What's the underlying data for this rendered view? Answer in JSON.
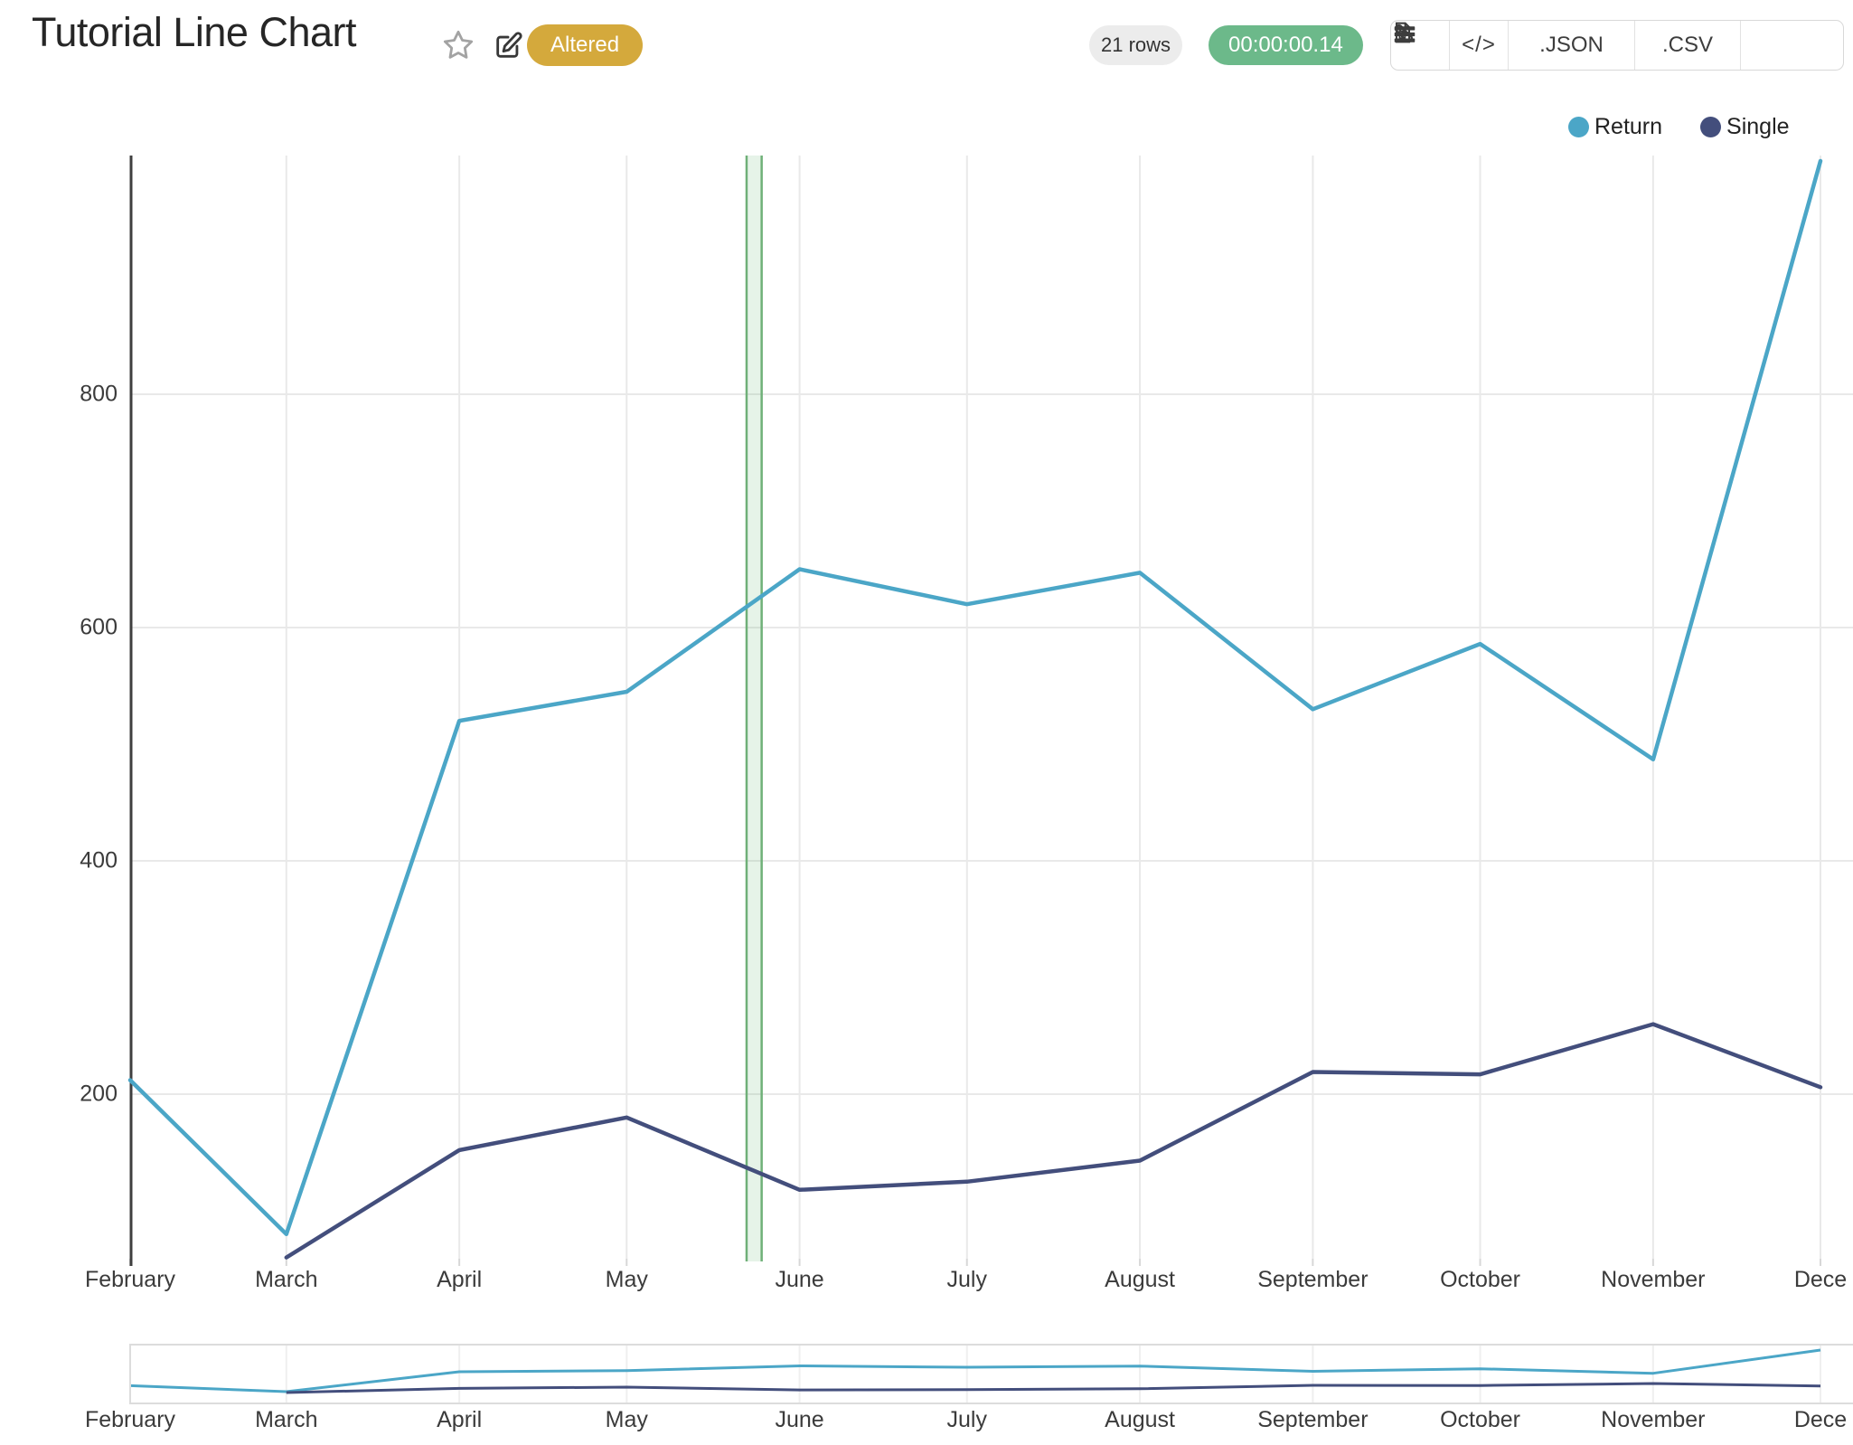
{
  "header": {
    "title": "Tutorial Line Chart",
    "badge": "Altered",
    "rows_label": "21 rows",
    "duration": "00:00:00.14",
    "code_glyph": "</>",
    "export_json": ".JSON",
    "export_csv": ".CSV"
  },
  "legend": [
    {
      "label": "Return",
      "color": "#4ba6c7"
    },
    {
      "label": "Single",
      "color": "#434e7c"
    }
  ],
  "chart_data": {
    "type": "line",
    "x": [
      "February",
      "March",
      "April",
      "May",
      "June",
      "July",
      "August",
      "September",
      "October",
      "November",
      "December"
    ],
    "x_tick_labels": [
      "February",
      "March",
      "April",
      "May",
      "June",
      "July",
      "August",
      "September",
      "October",
      "November",
      "Dece"
    ],
    "series": [
      {
        "name": "Return",
        "color": "#4ba6c7",
        "values": [
          212,
          80,
          520,
          545,
          650,
          620,
          647,
          530,
          586,
          487,
          1000
        ]
      },
      {
        "name": "Single",
        "color": "#434e7c",
        "values": [
          null,
          60,
          152,
          180,
          118,
          125,
          143,
          219,
          217,
          260,
          206
        ]
      }
    ],
    "y_ticks": [
      200,
      400,
      600,
      800
    ],
    "ylim": [
      58,
      1005
    ],
    "grid": true,
    "legend_position": "top-right",
    "highlight_band": {
      "start_day": 110.5,
      "end_day": 113.2,
      "fill": "#65b270",
      "border": "#6fb078"
    },
    "rangeslider": true
  },
  "colors": {
    "grid": "#e9e9e9",
    "axis": "#3f3f3f",
    "tick_text": "#3b3b3b",
    "slider_frame": "#dcdcdc"
  }
}
